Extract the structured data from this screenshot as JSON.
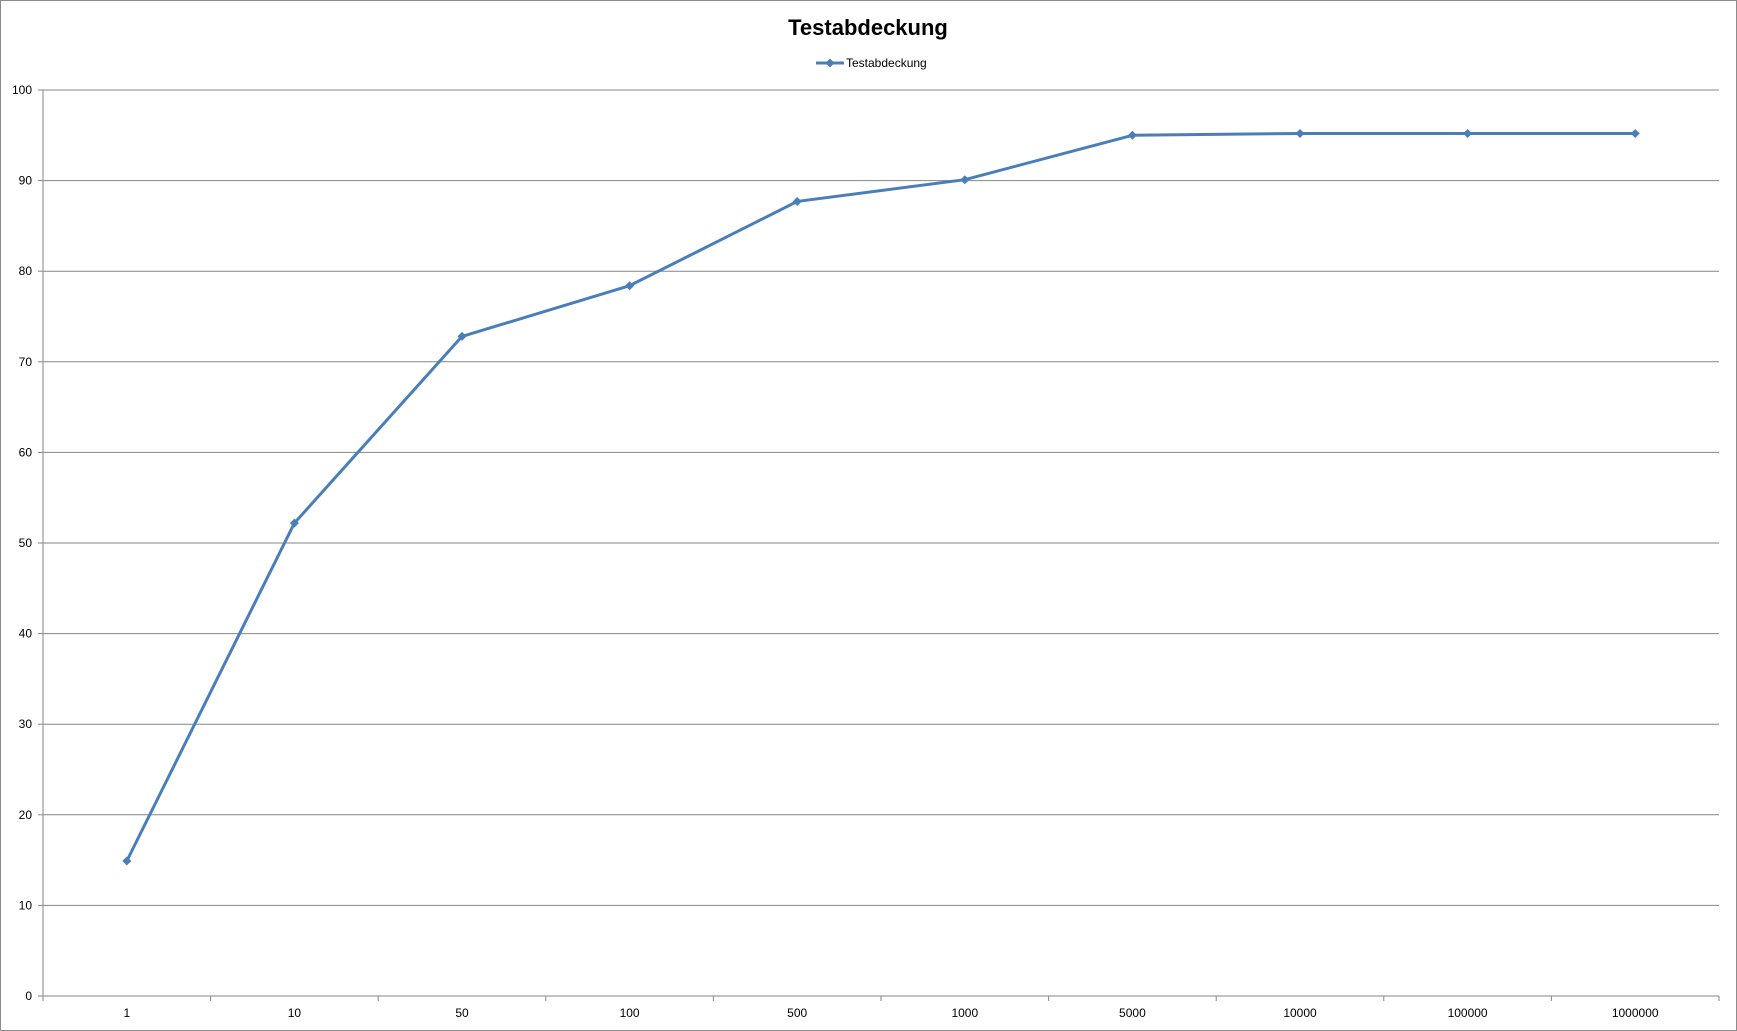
{
  "chart_data": {
    "type": "line",
    "title": "Testabdeckung",
    "xlabel": "",
    "ylabel": "",
    "categories": [
      "1",
      "10",
      "50",
      "100",
      "500",
      "1000",
      "5000",
      "10000",
      "100000",
      "1000000"
    ],
    "series": [
      {
        "name": "Testabdeckung",
        "values": [
          14.9,
          52.2,
          72.8,
          78.4,
          87.7,
          90.1,
          95.0,
          95.2,
          95.2,
          95.2
        ]
      }
    ],
    "ylim": [
      0,
      100
    ],
    "yticks": [
      "0",
      "10",
      "20",
      "30",
      "40",
      "50",
      "60",
      "70",
      "80",
      "90",
      "100"
    ],
    "grid": "horizontal",
    "legend_position": "top",
    "colors": {
      "series": "#4a7ebb",
      "gridline": "#868686",
      "axis": "#868686"
    }
  }
}
